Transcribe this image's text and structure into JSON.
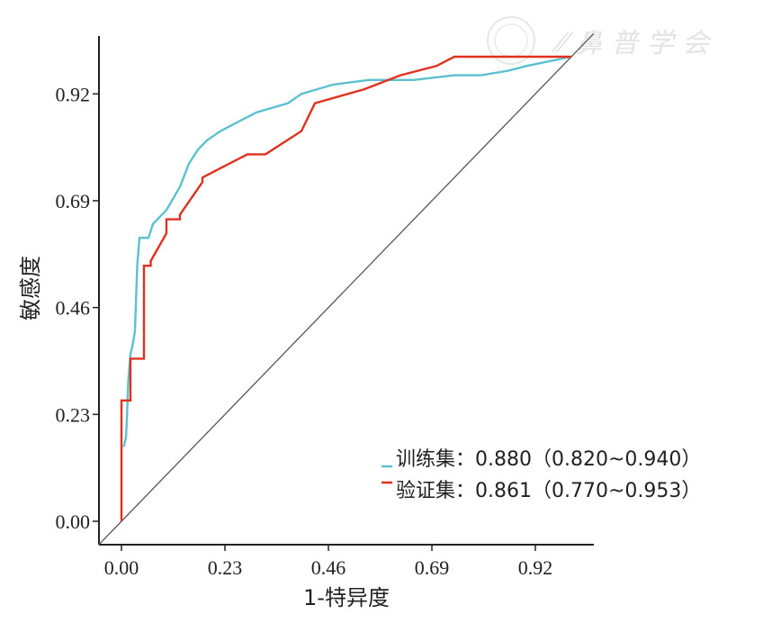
{
  "chart_data": {
    "type": "line",
    "xlabel": "1-特异度",
    "ylabel": "敏感度",
    "xlim": [
      -0.05,
      1.03
    ],
    "ylim": [
      -0.05,
      1.05
    ],
    "x_ticks": [
      0.0,
      0.23,
      0.46,
      0.69,
      0.92
    ],
    "y_ticks": [
      0.0,
      0.23,
      0.46,
      0.69,
      0.92
    ],
    "x_tick_labels": [
      "0.00",
      "0.23",
      "0.46",
      "0.69",
      "0.92"
    ],
    "y_tick_labels": [
      "0.00",
      "0.23",
      "0.46",
      "0.69",
      "0.92"
    ],
    "grid": false,
    "legend_position": "bottom-right",
    "reference_line": {
      "x": [
        0,
        1
      ],
      "y": [
        0,
        1
      ]
    },
    "series": [
      {
        "name": "训练集：0.880（0.820~0.940）",
        "color": "#5bc0d0",
        "x": [
          0.005,
          0.01,
          0.012,
          0.015,
          0.02,
          0.025,
          0.03,
          0.035,
          0.04,
          0.06,
          0.07,
          0.08,
          0.1,
          0.13,
          0.15,
          0.17,
          0.19,
          0.22,
          0.26,
          0.3,
          0.37,
          0.4,
          0.47,
          0.55,
          0.65,
          0.74,
          0.8,
          0.86,
          0.9,
          1.0
        ],
        "y": [
          0.16,
          0.18,
          0.22,
          0.3,
          0.36,
          0.38,
          0.41,
          0.55,
          0.61,
          0.61,
          0.64,
          0.65,
          0.67,
          0.72,
          0.77,
          0.8,
          0.82,
          0.84,
          0.86,
          0.88,
          0.9,
          0.92,
          0.94,
          0.95,
          0.95,
          0.96,
          0.96,
          0.97,
          0.98,
          1.0
        ]
      },
      {
        "name": "验证集：0.861（0.770~0.953）",
        "color": "#e0301e",
        "x": [
          0.0,
          0.0,
          0.02,
          0.02,
          0.05,
          0.05,
          0.065,
          0.065,
          0.1,
          0.1,
          0.13,
          0.13,
          0.18,
          0.18,
          0.22,
          0.28,
          0.32,
          0.4,
          0.43,
          0.54,
          0.62,
          0.7,
          0.74,
          0.88,
          1.0
        ],
        "y": [
          0.0,
          0.26,
          0.26,
          0.35,
          0.35,
          0.55,
          0.55,
          0.56,
          0.62,
          0.65,
          0.65,
          0.66,
          0.73,
          0.74,
          0.76,
          0.79,
          0.79,
          0.84,
          0.9,
          0.93,
          0.96,
          0.98,
          1.0,
          1.0,
          1.0
        ]
      }
    ]
  }
}
